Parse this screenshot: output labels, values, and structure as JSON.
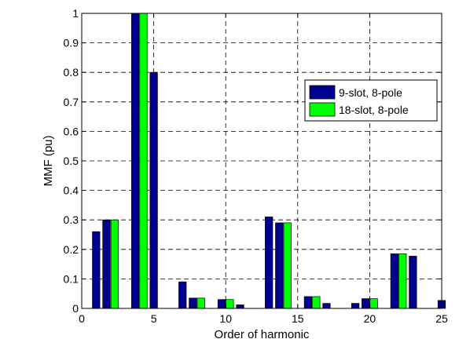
{
  "chart_data": {
    "type": "bar",
    "title": "",
    "xlabel": "Order of harmonic",
    "ylabel": "MMF (pu)",
    "xlim": [
      0,
      25
    ],
    "ylim": [
      0,
      1
    ],
    "xticks": [
      0,
      5,
      10,
      15,
      20,
      25
    ],
    "yticks": [
      0,
      0.1,
      0.2,
      0.3,
      0.4,
      0.5,
      0.6,
      0.7,
      0.8,
      0.9,
      1
    ],
    "ytick_labels": [
      "0",
      "0.1",
      "0.2",
      "0.3",
      "0.4",
      "0.5",
      "0.6",
      "0.7",
      "0.8",
      "0.9",
      "1"
    ],
    "grid": true,
    "legend_position": "upper-right",
    "series": [
      {
        "name": "9-slot, 8-pole",
        "color": "#00008f",
        "x": [
          1,
          2,
          4,
          5,
          7,
          8,
          10,
          11,
          13,
          14,
          16,
          17,
          19,
          20,
          22,
          23,
          25
        ],
        "values": [
          0.26,
          0.3,
          1.0,
          0.8,
          0.09,
          0.035,
          0.03,
          0.012,
          0.31,
          0.29,
          0.04,
          0.017,
          0.017,
          0.033,
          0.185,
          0.177,
          0.027
        ]
      },
      {
        "name": "18-slot, 8-pole",
        "color": "#00ff00",
        "x": [
          2,
          4,
          8,
          10,
          14,
          16,
          20,
          22
        ],
        "values": [
          0.3,
          1.0,
          0.035,
          0.03,
          0.29,
          0.04,
          0.033,
          0.185
        ]
      }
    ]
  }
}
